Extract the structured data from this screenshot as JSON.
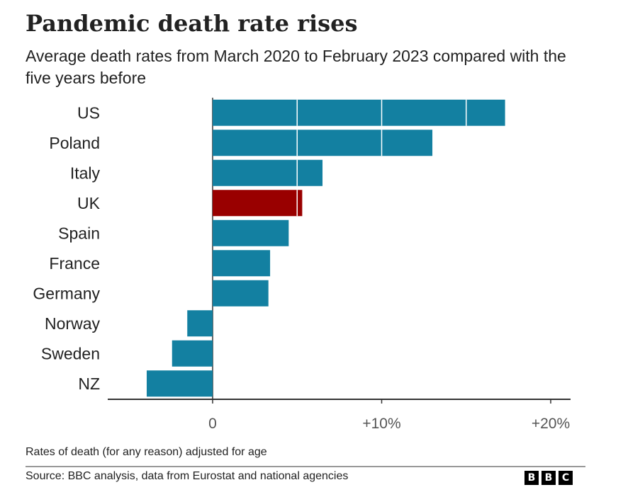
{
  "chart_data": {
    "type": "bar",
    "orientation": "horizontal",
    "title": "Pandemic death rate rises",
    "subtitle": "Average death rates from March 2020 to February 2023 compared with the five years before",
    "categories": [
      "US",
      "Poland",
      "Italy",
      "UK",
      "Spain",
      "France",
      "Germany",
      "Norway",
      "Sweden",
      "NZ"
    ],
    "values": [
      17.3,
      13.0,
      6.5,
      5.3,
      4.5,
      3.4,
      3.3,
      -1.5,
      -2.4,
      -3.9
    ],
    "highlight": "UK",
    "xlim": [
      -6.3,
      21.2
    ],
    "ticks": [
      0,
      10,
      20
    ],
    "tick_labels": [
      "0",
      "+10%",
      "+20%"
    ],
    "xlabel": "",
    "ylabel": "",
    "grid": false,
    "colors": {
      "bar": "#1380A1",
      "highlight": "#990000",
      "axis": "#333333",
      "tick_text": "#555555"
    }
  },
  "footer": {
    "note": "Rates of death (for any reason) adjusted for age",
    "source": "Source: BBC analysis, data from Eurostat and national agencies",
    "logo": [
      "B",
      "B",
      "C"
    ]
  }
}
